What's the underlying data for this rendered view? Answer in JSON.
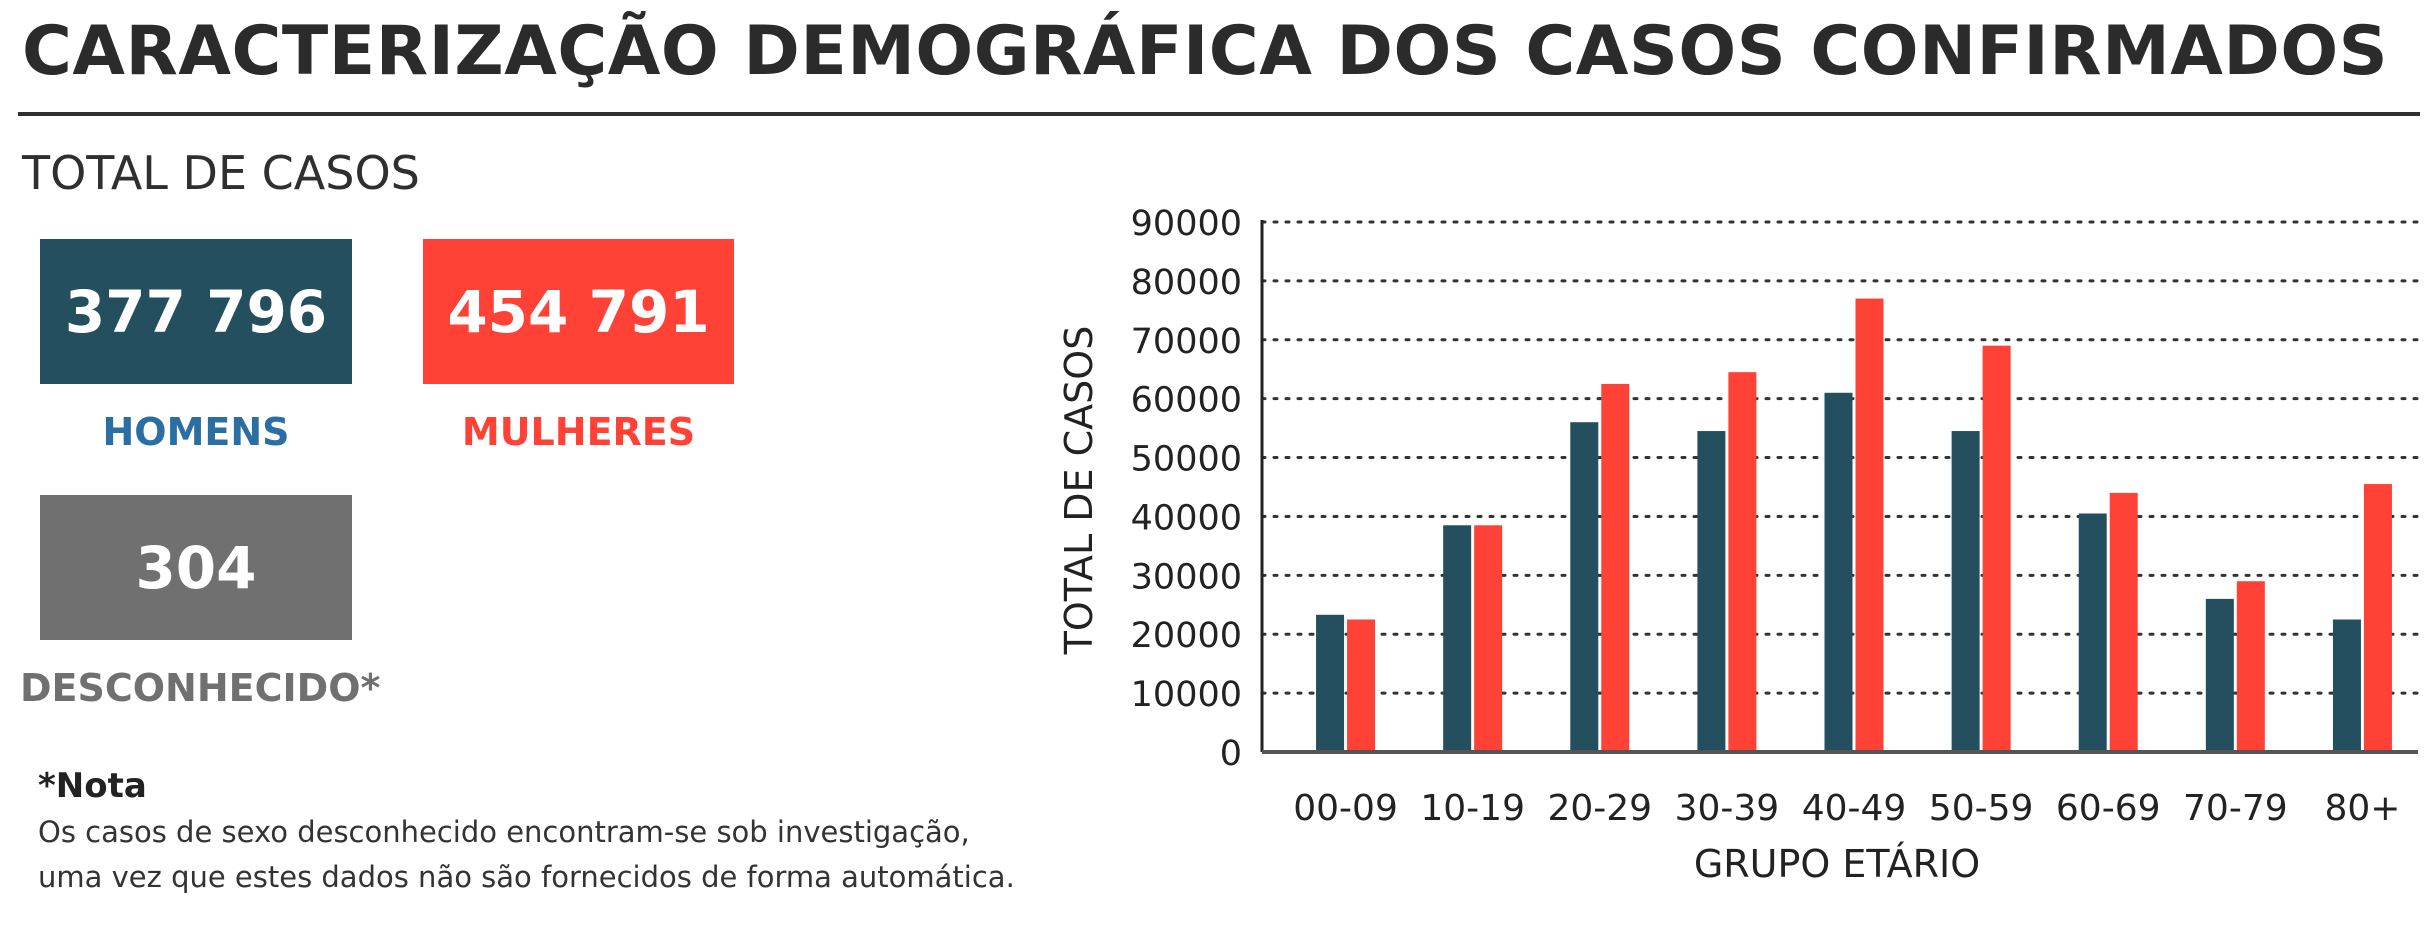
{
  "header": {
    "title": "CARACTERIZAÇÃO DEMOGRÁFICA DOS CASOS CONFIRMADOS",
    "subtitle": "TOTAL DE CASOS"
  },
  "stats": {
    "men": {
      "value": "377 796",
      "label": "HOMENS",
      "color": "#234f5e",
      "label_color": "#2a6ea3"
    },
    "women": {
      "value": "454 791",
      "label": "MULHERES",
      "color": "#ff4136",
      "label_color": "#ff4136"
    },
    "unknown": {
      "value": "304",
      "label": "DESCONHECIDO*",
      "color": "#707070",
      "label_color": "#707070"
    }
  },
  "note": {
    "title": "*Nota",
    "line1": "Os casos de sexo desconhecido encontram-se sob investigação,",
    "line2": "uma vez que estes dados não são fornecidos de forma automática."
  },
  "chart_data": {
    "type": "bar",
    "categories": [
      "00-09",
      "10-19",
      "20-29",
      "30-39",
      "40-49",
      "50-59",
      "60-69",
      "70-79",
      "80+"
    ],
    "series": [
      {
        "values": [
          23300,
          38500,
          56000,
          54500,
          61000,
          54500,
          40500,
          26000,
          22500
        ],
        "color": "#234f5e"
      },
      {
        "values": [
          22500,
          38500,
          62500,
          64500,
          77000,
          69000,
          44000,
          29000,
          45500
        ],
        "color": "#ff4136"
      }
    ],
    "ylim": [
      0,
      90000
    ],
    "yticks": [
      0,
      10000,
      20000,
      30000,
      40000,
      50000,
      60000,
      70000,
      80000,
      90000
    ],
    "ytick_labels": [
      "0",
      "10000",
      "20000",
      "30000",
      "40000",
      "50000",
      "60000",
      "70000",
      "80000",
      "90000"
    ],
    "xlabel": "GRUPO ETÁRIO",
    "ylabel": "TOTAL DE CASOS",
    "grid": "dotted horizontal",
    "legend": "none"
  }
}
